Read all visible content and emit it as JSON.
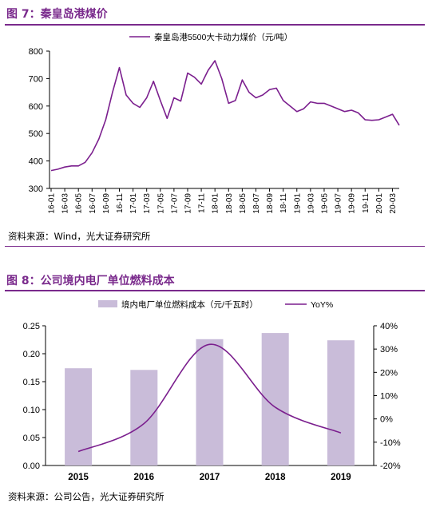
{
  "figure7": {
    "title": "图 7：秦皇岛港煤价",
    "source": "资料来源：Wind，光大证券研究所"
  },
  "figure8": {
    "title": "图 8：公司境内电厂单位燃料成本",
    "source": "资料来源：公司公告，光大证券研究所"
  },
  "colors": {
    "accent": "#7a2a8c",
    "bar": "#c9bcd9",
    "line": "#7b1f8e"
  },
  "chart_data": [
    {
      "type": "line",
      "legend": [
        "秦皇岛港5500大卡动力煤价（元/吨）"
      ],
      "ylim": [
        300,
        800
      ],
      "yticks": [
        300,
        400,
        500,
        600,
        700,
        800
      ],
      "xticks": [
        "16-01",
        "16-03",
        "16-05",
        "16-07",
        "16-09",
        "16-11",
        "17-01",
        "17-03",
        "17-05",
        "17-07",
        "17-09",
        "17-11",
        "18-01",
        "18-03",
        "18-05",
        "18-07",
        "18-09",
        "18-11",
        "19-01",
        "19-03",
        "19-05",
        "19-07",
        "19-09",
        "19-11",
        "20-01",
        "20-03"
      ],
      "grid": false,
      "series": [
        {
          "name": "秦皇岛港5500大卡动力煤价（元/吨）",
          "x": [
            "16-01",
            "16-02",
            "16-03",
            "16-04",
            "16-05",
            "16-06",
            "16-07",
            "16-08",
            "16-09",
            "16-10",
            "16-11",
            "16-12",
            "17-01",
            "17-02",
            "17-03",
            "17-04",
            "17-05",
            "17-06",
            "17-07",
            "17-08",
            "17-09",
            "17-10",
            "17-11",
            "17-12",
            "18-01",
            "18-02",
            "18-03",
            "18-04",
            "18-05",
            "18-06",
            "18-07",
            "18-08",
            "18-09",
            "18-10",
            "18-11",
            "18-12",
            "19-01",
            "19-02",
            "19-03",
            "19-04",
            "19-05",
            "19-06",
            "19-07",
            "19-08",
            "19-09",
            "19-10",
            "19-11",
            "19-12",
            "20-01",
            "20-02",
            "20-03",
            "20-04"
          ],
          "values": [
            365,
            370,
            378,
            382,
            382,
            395,
            430,
            480,
            550,
            650,
            740,
            640,
            610,
            595,
            630,
            690,
            620,
            555,
            630,
            618,
            720,
            705,
            680,
            730,
            765,
            700,
            610,
            620,
            695,
            650,
            630,
            640,
            660,
            665,
            620,
            600,
            580,
            590,
            615,
            610,
            610,
            600,
            590,
            580,
            585,
            575,
            550,
            548,
            550,
            560,
            570,
            530
          ]
        }
      ]
    },
    {
      "type": "bar",
      "legend": [
        "境内电厂单位燃料成本（元/千瓦时）",
        "YoY%"
      ],
      "categories": [
        "2015",
        "2016",
        "2017",
        "2018",
        "2019"
      ],
      "ylim": [
        0,
        0.25
      ],
      "yticks": [
        "0.00",
        "0.05",
        "0.10",
        "0.15",
        "0.20",
        "0.25"
      ],
      "y2lim": [
        -20,
        40
      ],
      "y2ticks": [
        "-20%",
        "-10%",
        "0%",
        "10%",
        "20%",
        "30%",
        "40%"
      ],
      "grid": false,
      "series": [
        {
          "name": "境内电厂单位燃料成本（元/千瓦时）",
          "type": "bar",
          "axis": "left",
          "values": [
            0.174,
            0.171,
            0.226,
            0.237,
            0.224
          ]
        },
        {
          "name": "YoY%",
          "type": "line",
          "axis": "right",
          "values": [
            -14,
            -2,
            32,
            5,
            -6
          ]
        }
      ]
    }
  ]
}
